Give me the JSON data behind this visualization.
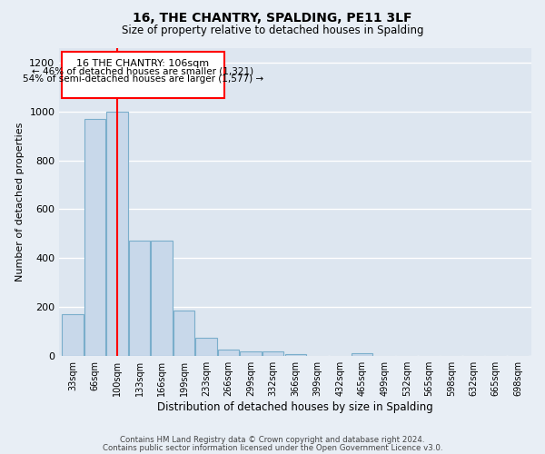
{
  "title": "16, THE CHANTRY, SPALDING, PE11 3LF",
  "subtitle": "Size of property relative to detached houses in Spalding",
  "xlabel": "Distribution of detached houses by size in Spalding",
  "ylabel": "Number of detached properties",
  "bar_color": "#c8d8ea",
  "bar_edge_color": "#7aaecb",
  "background_color": "#dde6f0",
  "fig_background_color": "#e8eef5",
  "grid_color": "#ffffff",
  "categories": [
    "33sqm",
    "66sqm",
    "100sqm",
    "133sqm",
    "166sqm",
    "199sqm",
    "233sqm",
    "266sqm",
    "299sqm",
    "332sqm",
    "366sqm",
    "399sqm",
    "432sqm",
    "465sqm",
    "499sqm",
    "532sqm",
    "565sqm",
    "598sqm",
    "632sqm",
    "665sqm",
    "698sqm"
  ],
  "values": [
    170,
    970,
    1000,
    470,
    470,
    185,
    75,
    28,
    20,
    18,
    10,
    0,
    0,
    12,
    0,
    0,
    0,
    0,
    0,
    0,
    0
  ],
  "ylim": [
    0,
    1260
  ],
  "yticks": [
    0,
    200,
    400,
    600,
    800,
    1000,
    1200
  ],
  "redline_x": 2,
  "annotation_title": "16 THE CHANTRY: 106sqm",
  "annotation_line1": "← 46% of detached houses are smaller (1,321)",
  "annotation_line2": "54% of semi-detached houses are larger (1,577) →",
  "footer_line1": "Contains HM Land Registry data © Crown copyright and database right 2024.",
  "footer_line2": "Contains public sector information licensed under the Open Government Licence v3.0."
}
